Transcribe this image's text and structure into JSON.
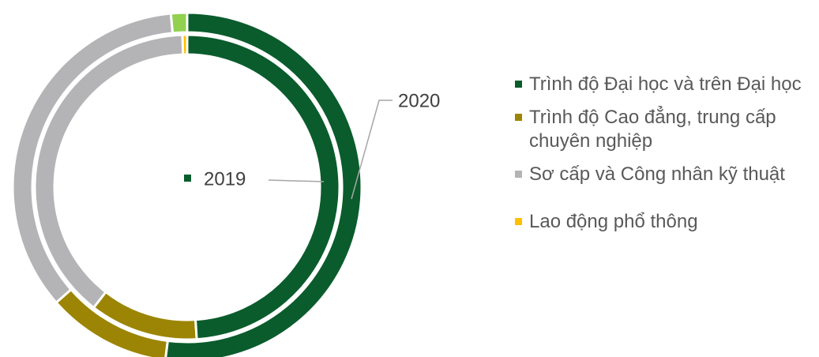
{
  "chart_data": {
    "type": "donut",
    "categories": [
      "Trình độ Đại học và trên Đại học",
      "Trình độ Cao đẳng, trung cấp chuyên nghiệp",
      "Sơ cấp và Công nhân kỹ thuật",
      "Lao động phổ thông"
    ],
    "colors": [
      "#0a5c2c",
      "#9c8504",
      "#b4b4b6",
      "#ffc000"
    ],
    "series": [
      {
        "name": "2019",
        "values": [
          49,
          11.5,
          39,
          0.5
        ],
        "colors": [
          "#0a5c2c",
          "#9c8504",
          "#b4b4b6",
          "#ffc000"
        ]
      },
      {
        "name": "2020",
        "values": [
          52,
          11.5,
          35,
          1.5
        ],
        "colors": [
          "#0a5c2c",
          "#9c8504",
          "#b4b4b6",
          "#92d050"
        ]
      }
    ]
  }
}
